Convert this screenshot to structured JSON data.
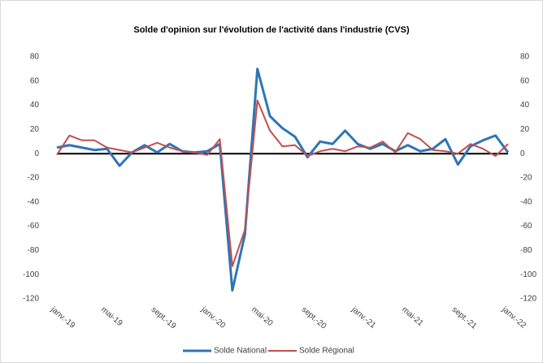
{
  "chart_data": {
    "type": "line",
    "title": "Solde d'opinion sur l'évolution de l'activité dans l'industrie (CVS)",
    "categories": [
      "janv.-19",
      null,
      null,
      null,
      "mai-19",
      null,
      null,
      null,
      "sept.-19",
      null,
      null,
      null,
      "janv.-20",
      null,
      null,
      null,
      "mai-20",
      null,
      null,
      null,
      "sept.-20",
      null,
      null,
      null,
      "janv.-21",
      null,
      null,
      null,
      "mai-21",
      null,
      null,
      null,
      "sept.-21",
      null,
      null,
      null,
      "janv.-22"
    ],
    "series": [
      {
        "name": "Solde National",
        "color": "#2e75b6",
        "values": [
          5,
          7,
          5,
          3,
          4,
          -10,
          1,
          7,
          1,
          8,
          2,
          1,
          2,
          8,
          -113,
          -67,
          70,
          31,
          21,
          14,
          -3,
          10,
          8,
          19,
          8,
          4,
          8,
          2,
          7,
          2,
          4,
          12,
          -9,
          6,
          11,
          15,
          1
        ]
      },
      {
        "name": "Solde Régional",
        "color": "#c0504d",
        "values": [
          -1,
          15,
          11,
          11,
          5,
          3,
          1,
          5,
          9,
          5,
          2,
          1,
          -1,
          12,
          -93,
          -63,
          44,
          19,
          6,
          7,
          -2,
          2,
          4,
          2,
          6,
          5,
          10,
          1,
          17,
          12,
          3,
          2,
          0,
          8,
          4,
          -2,
          8
        ]
      }
    ],
    "ylim": [
      -120,
      80
    ],
    "yticks": [
      -120,
      -100,
      -80,
      -60,
      -40,
      -20,
      0,
      20,
      40,
      60,
      80
    ],
    "y2lim": [
      -120,
      80
    ],
    "y2ticks": [
      -120,
      -100,
      -80,
      -60,
      -40,
      -20,
      0,
      20,
      40,
      60,
      80
    ],
    "legend": "bottom",
    "grid": false
  }
}
